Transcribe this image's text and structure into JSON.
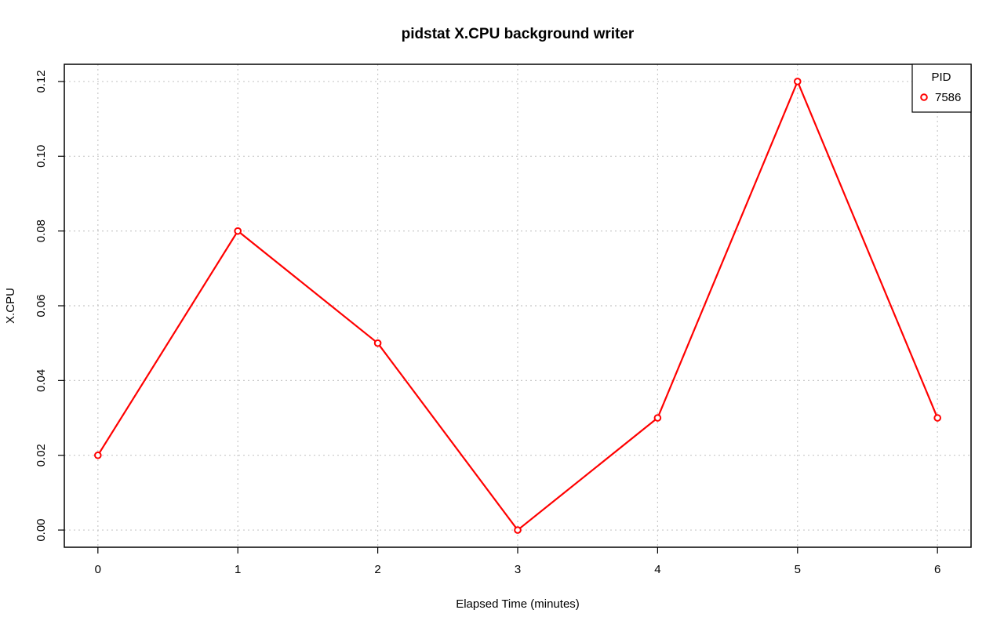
{
  "chart_data": {
    "type": "line",
    "title": "pidstat X.CPU background writer",
    "xlabel": "Elapsed Time (minutes)",
    "ylabel": "X.CPU",
    "x": [
      0,
      1,
      2,
      3,
      4,
      5,
      6
    ],
    "series": [
      {
        "name": "7586",
        "values": [
          0.02,
          0.08,
          0.05,
          0.0,
          0.03,
          0.12,
          0.03
        ],
        "color": "#ff0000"
      }
    ],
    "xlim": [
      -0.24,
      6.24
    ],
    "ylim": [
      -0.0046,
      0.1246
    ],
    "x_ticks": [
      0,
      1,
      2,
      3,
      4,
      5,
      6
    ],
    "x_tick_labels": [
      "0",
      "1",
      "2",
      "3",
      "4",
      "5",
      "6"
    ],
    "y_ticks": [
      0.0,
      0.02,
      0.04,
      0.06,
      0.08,
      0.1,
      0.12
    ],
    "y_tick_labels": [
      "0.00",
      "0.02",
      "0.04",
      "0.06",
      "0.08",
      "0.10",
      "0.12"
    ],
    "grid": true,
    "legend": {
      "title": "PID",
      "position": "top-right"
    }
  }
}
